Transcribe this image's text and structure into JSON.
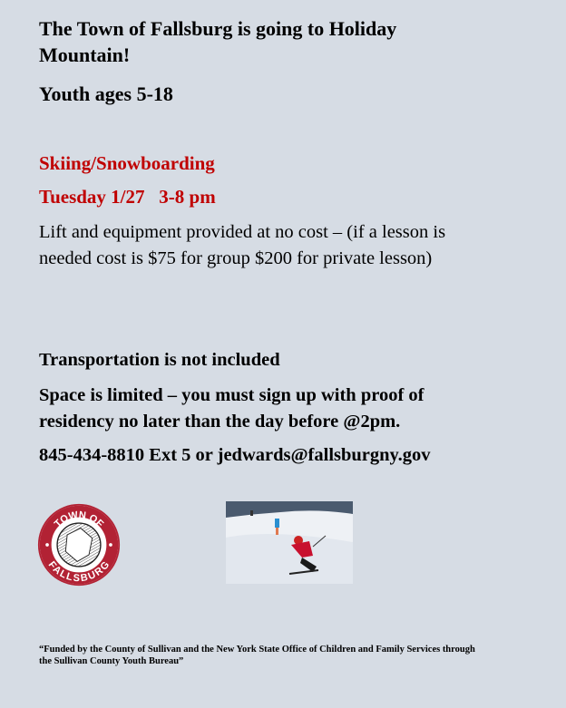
{
  "title": [
    "The Town of Fallsburg is going to Holiday",
    "Mountain!"
  ],
  "audience": "Youth ages 5-18",
  "activity": "Skiing/Snowboarding",
  "date_time": "Tuesday 1/27   3-8 pm",
  "cost_lines": [
    "Lift and equipment provided at no cost – (if a lesson is",
    "needed cost is $75 for group $200 for private lesson)"
  ],
  "transportation": "Transportation is not included",
  "signup_lines": [
    "Space is limited – you must sign up with proof of",
    "residency no later than the day before @2pm."
  ],
  "contact": "845-434-8810 Ext 5 or jedwards@fallsburgny.gov",
  "logo": {
    "top_text": "TOWN OF",
    "bottom_text": "FALLSBURG"
  },
  "footer_lines": [
    "“Funded by the County of Sullivan and the New York State Office of Children and Family Services through",
    "the Sullivan County Youth Bureau”"
  ],
  "colors": {
    "background": "#d6dce4",
    "accent": "#c00000"
  }
}
